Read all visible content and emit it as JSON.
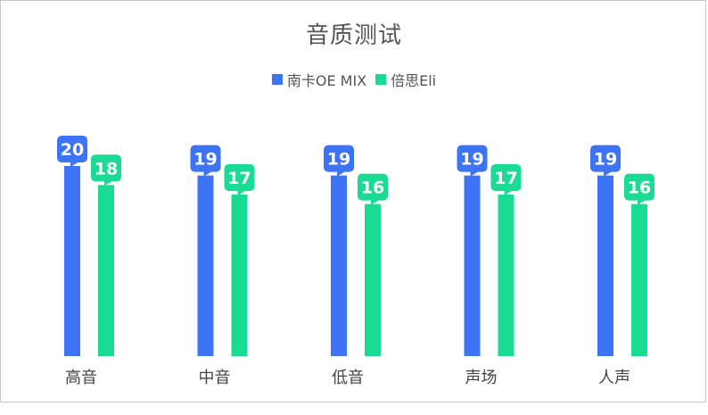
{
  "chart_data": {
    "type": "bar",
    "title": "音质测试",
    "categories": [
      "高音",
      "中音",
      "低音",
      "声场",
      "人声"
    ],
    "series": [
      {
        "name": "南卡OE MIX",
        "color": "#3c74f5",
        "values": [
          20,
          19,
          19,
          19,
          19
        ]
      },
      {
        "name": "倍思Eli",
        "color": "#1adb94",
        "values": [
          18,
          17,
          16,
          17,
          16
        ]
      }
    ],
    "xlabel": "",
    "ylabel": "",
    "ylim": [
      0,
      20
    ],
    "grid": false,
    "legend_position": "top-center",
    "data_labels": true
  }
}
